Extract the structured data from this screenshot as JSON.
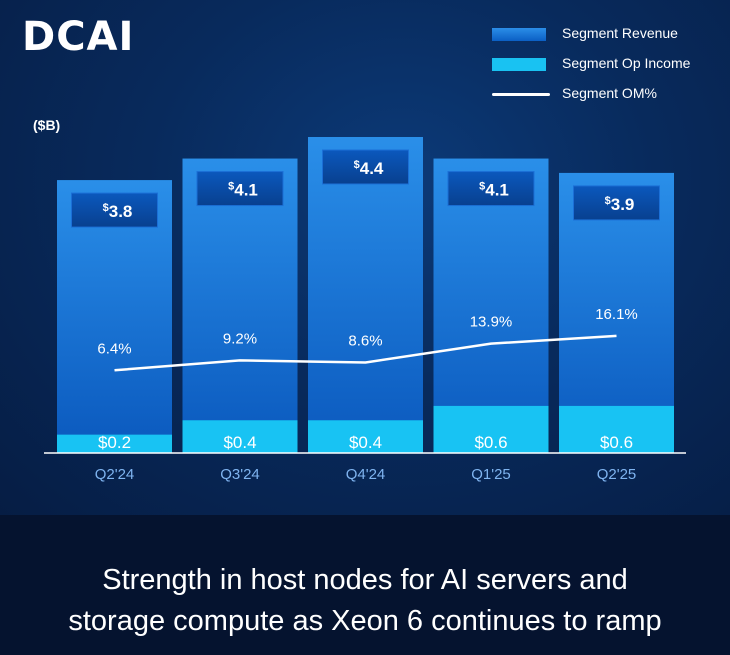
{
  "title": "DCAI",
  "unit_label": "($B)",
  "legend": {
    "revenue": "Segment Revenue",
    "op_income": "Segment Op Income",
    "om": "Segment OM%"
  },
  "colors": {
    "revenue_top": "#2a8fe9",
    "revenue_bottom": "#0a58bd",
    "op_income": "#18c3f3",
    "om_line": "#ffffff",
    "label_box": "#0a4fae"
  },
  "chart_data": {
    "type": "bar",
    "title": "DCAI",
    "ylabel": "($B)",
    "xlabel": "",
    "ylim": [
      0,
      4.4
    ],
    "categories": [
      "Q2'24",
      "Q3'24",
      "Q4'24",
      "Q1'25",
      "Q2'25"
    ],
    "series": [
      {
        "name": "Segment Revenue",
        "values": [
          3.8,
          4.1,
          4.4,
          4.1,
          3.9
        ],
        "labels": [
          "3.8",
          "4.1",
          "4.4",
          "4.1",
          "3.9"
        ]
      },
      {
        "name": "Segment Op Income",
        "values": [
          0.2,
          0.4,
          0.4,
          0.6,
          0.6
        ],
        "labels": [
          "$0.2",
          "$0.4",
          "$0.4",
          "$0.6",
          "$0.6"
        ]
      },
      {
        "name": "Segment OM%",
        "values": [
          6.4,
          9.2,
          8.6,
          13.9,
          16.1
        ],
        "labels": [
          "6.4%",
          "9.2%",
          "8.6%",
          "13.9%",
          "16.1%"
        ]
      }
    ],
    "currency_symbol": "$",
    "legend_position": "top-right"
  },
  "caption": {
    "line1": "Strength in host nodes for AI servers and",
    "line2": "storage compute as Xeon 6 continues to ramp"
  }
}
